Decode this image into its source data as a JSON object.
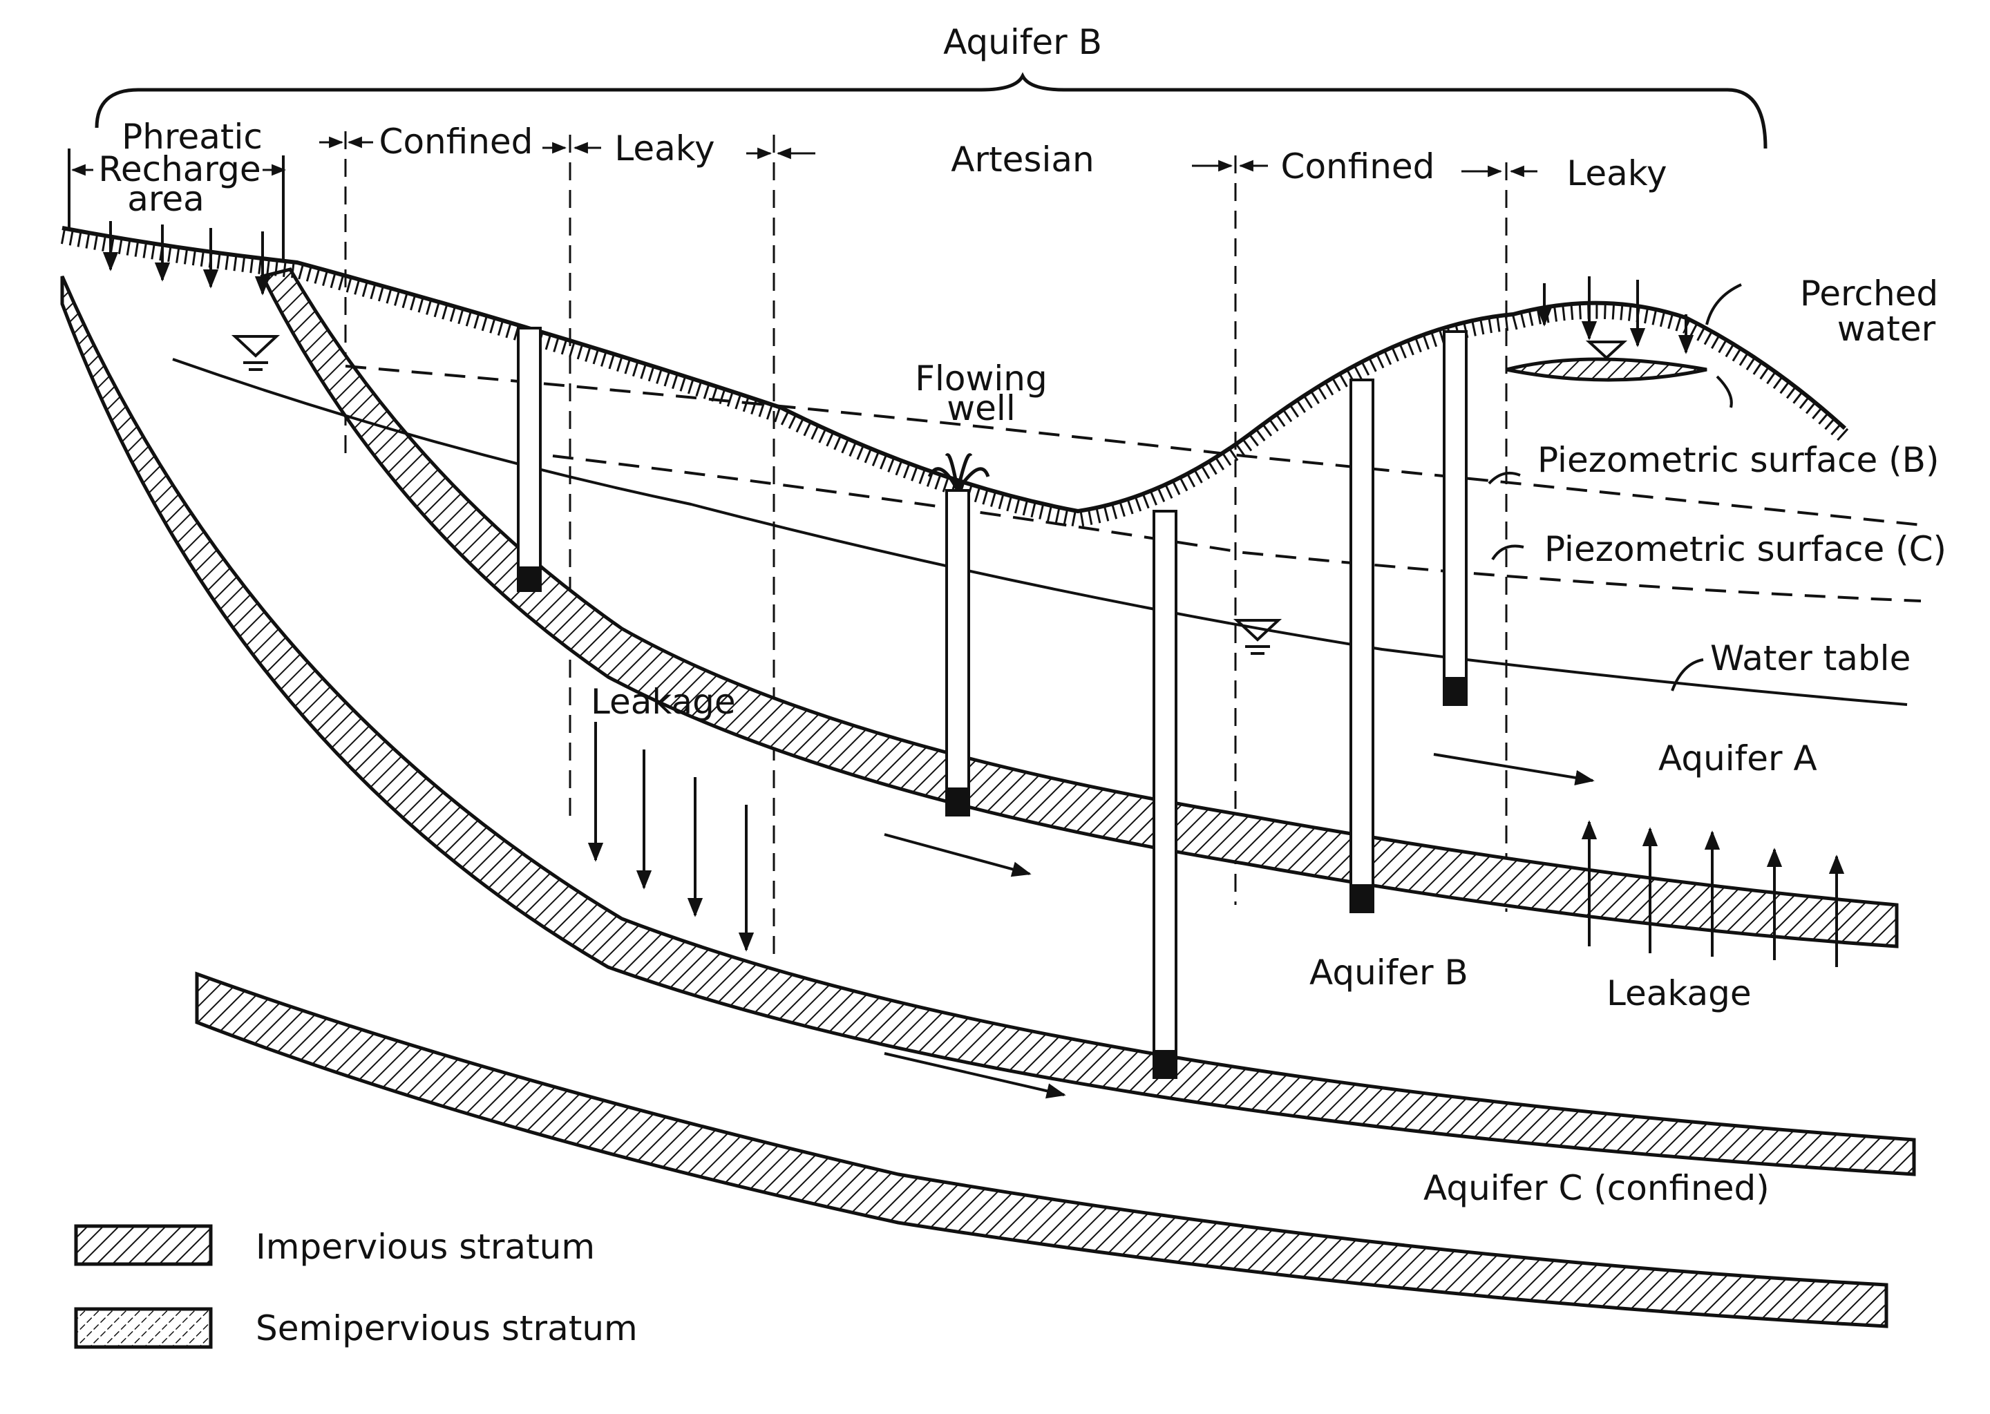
{
  "header": {
    "top": "Aquifer B",
    "zones": {
      "phreatic": "Phreatic",
      "recharge_line1": "Recharge",
      "recharge_line2": "area",
      "confined_left": "Confined",
      "leaky_left": "Leaky",
      "artesian": "Artesian",
      "confined_right": "Confined",
      "leaky_right": "Leaky"
    }
  },
  "labels": {
    "flowing_well_line1": "Flowing",
    "flowing_well_line2": "well",
    "perched_line1": "Perched",
    "perched_line2": "water",
    "piezo_b": "Piezometric  surface (B)",
    "piezo_c": "Piezometric  surface  (C)",
    "water_table": "Water table",
    "aquifer_a": "Aquifer  A",
    "aquifer_b": "Aquifer  B",
    "aquifer_c": "Aquifer  C  (confined)",
    "leakage_left": "Leakage",
    "leakage_right": "Leakage"
  },
  "legend": {
    "impervious": "Impervious  stratum",
    "semipervious": "Semipervious  stratum"
  },
  "colors": {
    "ink": "#111111",
    "paper": "#ffffff"
  }
}
